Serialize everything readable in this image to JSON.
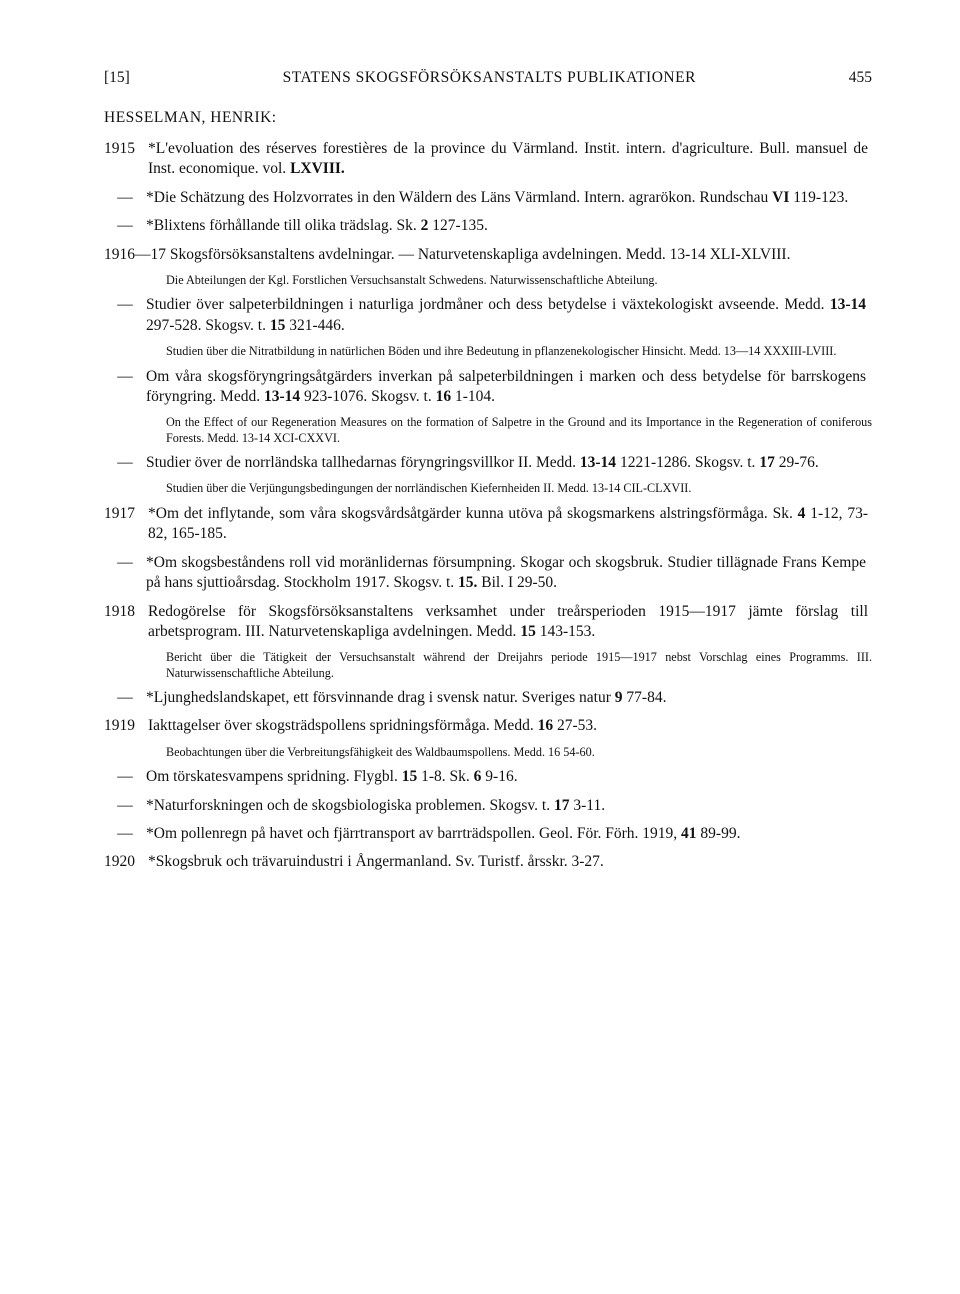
{
  "header": {
    "left_bracket": "[15]",
    "title": "STATENS SKOGSFÖRSÖKSANSTALTS PUBLIKATIONER",
    "page_number": "455"
  },
  "author": "HESSELMAN, HENRIK:",
  "entries": [
    {
      "year": "1915",
      "text": "*L'evoluation des réserves forestières de la province du Värmland. Instit. intern. d'agriculture. Bull. mansuel de Inst. economique. vol. ",
      "bold_tail": "LXVIII."
    },
    {
      "dash": "—",
      "text": "*Die Schätzung des Holzvorrates in den Wäldern des Läns Värmland. Intern. agrarökon. Rundschau ",
      "bold_inline": "VI",
      "tail": " 119-123."
    },
    {
      "dash": "—",
      "text": "*Blixtens förhållande till olika trädslag.  Sk. ",
      "bold_inline": "2",
      "tail": " 127-135."
    },
    {
      "year": "1916—17",
      "text": " Skogsförsöksanstaltens avdelningar. — Naturvetenskapliga avdelningen.  Medd. 13-14 ",
      "sc": "XLI-XLVIII.",
      "note": "Die Abteilungen der Kgl. Forstlichen Versuchsanstalt Schwedens. Naturwissenschaftliche Abteilung."
    },
    {
      "dash": "—",
      "text": "Studier över salpeterbildningen i naturliga jordmåner och dess betydelse i växtekologiskt avseende.  Medd. ",
      "bold_inline": "13-14",
      "tail": " 297-528.  Skogsv. t. ",
      "bold2": "15",
      "tail2": " 321-446.",
      "note": "Studien über die Nitratbildung in natürlichen Böden und ihre Bedeutung in pflanzenekologischer Hinsicht. Medd. 13—14 XXXIII-LVIII."
    },
    {
      "dash": "—",
      "text": "Om våra skogsföryngringsåtgärders inverkan på salpeterbildningen i marken och dess betydelse för barrskogens föryngring.  Medd. ",
      "bold_inline": "13-14",
      "tail": " 923-1076.  Skogsv. t. ",
      "bold2": "16",
      "tail2": " 1-104.",
      "note": "On the Effect of our Regeneration Measures on the formation of Salpetre in the Ground and its Importance in the Regeneration of coniferous Forests. Medd. 13-14 XCI-CXXVI."
    },
    {
      "dash": "—",
      "text": "Studier över de norrländska tallhedarnas föryngringsvillkor II.  Medd. ",
      "bold_inline": "13-14",
      "tail": " 1221-1286.  Skogsv. t. ",
      "bold2": "17",
      "tail2": " 29-76.",
      "note": "Studien über die Verjüngungsbedingungen der norrländischen Kiefernheiden II. Medd. 13-14 CIL-CLXVII."
    },
    {
      "year": "1917",
      "text": "*Om det inflytande, som våra skogsvårdsåtgärder kunna utöva på skogsmarkens alstringsförmåga.  Sk. ",
      "bold_inline": "4",
      "tail": " 1-12, 73-82, 165-185."
    },
    {
      "dash": "—",
      "text": "*Om skogsbeståndens roll vid moränlidernas försumpning.  Skogar och skogsbruk.  Studier tillägnade Frans Kempe på hans sjuttioårsdag. Stockholm 1917.  Skogsv. t. ",
      "bold_inline": "15.",
      "tail": "  Bil. I 29-50."
    },
    {
      "year": "1918",
      "text": "Redogörelse för Skogsförsöksanstaltens verksamhet under treårsperioden 1915—1917 jämte förslag till arbetsprogram. III. Naturvetenskapliga avdelningen.  Medd. ",
      "bold_inline": "15",
      "tail": " 143-153.",
      "note": "Bericht über die Tätigkeit der Versuchsanstalt während der Dreijahrs periode 1915—1917 nebst Vorschlag eines Programms. III. Naturwissenschaftliche Abteilung."
    },
    {
      "dash": "—",
      "text": "*Ljunghedslandskapet, ett försvinnande drag i svensk natur.  Sveriges natur ",
      "bold_inline": "9",
      "tail": " 77-84."
    },
    {
      "year": "1919",
      "text": "Iakttagelser över skogsträdspollens spridningsförmåga.  Medd. ",
      "bold_inline": "16",
      "tail": " 27-53.",
      "note": "Beobachtungen über die Verbreitungsfähigkeit des Waldbaumspollens. Medd. 16 54-60."
    },
    {
      "dash": "—",
      "text": "Om törskatesvampens spridning.  Flygbl. ",
      "bold_inline": "15",
      "tail": " 1-8.  Sk. ",
      "bold2": "6",
      "tail2": " 9-16."
    },
    {
      "dash": "—",
      "text": "*Naturforskningen och de skogsbiologiska problemen. Skogsv. t. ",
      "bold_inline": "17",
      "tail": " 3-11."
    },
    {
      "dash": "—",
      "text": "*Om pollenregn på havet och fjärrtransport av barrträdspollen.  Geol. För. Förh. 1919, ",
      "bold_inline": "41",
      "tail": " 89-99."
    },
    {
      "year": "1920",
      "text": "*Skogsbruk och trävaruindustri i Ångermanland. Sv. Turistf. årsskr. 3-27."
    }
  ]
}
